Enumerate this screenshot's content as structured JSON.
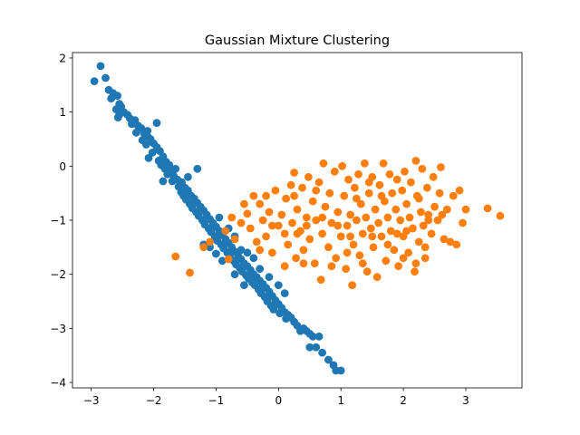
{
  "chart_data": {
    "type": "scatter",
    "title": "Gaussian Mixture Clustering",
    "xlabel": "",
    "ylabel": "",
    "xlim": [
      -3.3,
      3.9
    ],
    "ylim": [
      -4.1,
      2.1
    ],
    "xticks": [
      -3,
      -2,
      -1,
      0,
      1,
      2,
      3
    ],
    "yticks": [
      -4,
      -3,
      -2,
      -1,
      0,
      1,
      2
    ],
    "grid": false,
    "legend": "none",
    "series": [
      {
        "color": "#1f77b4",
        "points": [
          [
            -2.85,
            1.85
          ],
          [
            -2.95,
            1.57
          ],
          [
            -2.77,
            1.63
          ],
          [
            -2.72,
            1.41
          ],
          [
            -2.65,
            1.35
          ],
          [
            -2.68,
            1.25
          ],
          [
            -2.58,
            1.3
          ],
          [
            -2.55,
            1.15
          ],
          [
            -2.52,
            1.1
          ],
          [
            -2.6,
            1.05
          ],
          [
            -2.48,
            1.0
          ],
          [
            -2.55,
            0.95
          ],
          [
            -2.57,
            0.9
          ],
          [
            -2.42,
            0.95
          ],
          [
            -2.38,
            0.88
          ],
          [
            -2.3,
            0.85
          ],
          [
            -2.35,
            0.78
          ],
          [
            -2.25,
            0.75
          ],
          [
            -2.2,
            0.7
          ],
          [
            -2.28,
            0.62
          ],
          [
            -2.15,
            0.6
          ],
          [
            -2.1,
            0.55
          ],
          [
            -2.18,
            0.48
          ],
          [
            -2.05,
            0.5
          ],
          [
            -2.12,
            0.4
          ],
          [
            -2.0,
            0.42
          ],
          [
            -1.95,
            0.35
          ],
          [
            -2.02,
            0.25
          ],
          [
            -1.9,
            0.28
          ],
          [
            -2.08,
            0.15
          ],
          [
            -1.85,
            0.18
          ],
          [
            -1.92,
            0.1
          ],
          [
            -1.8,
            0.08
          ],
          [
            -1.88,
            0.02
          ],
          [
            -1.75,
            0.02
          ],
          [
            -1.82,
            -0.05
          ],
          [
            -1.72,
            -0.08
          ],
          [
            -1.65,
            -0.05
          ],
          [
            -1.78,
            -0.15
          ],
          [
            -1.68,
            -0.18
          ],
          [
            -1.62,
            -0.25
          ],
          [
            -1.7,
            -0.28
          ],
          [
            -1.55,
            -0.3
          ],
          [
            -1.85,
            -0.28
          ],
          [
            -1.6,
            -0.38
          ],
          [
            -1.5,
            -0.4
          ],
          [
            -1.56,
            -0.48
          ],
          [
            -1.45,
            -0.45
          ],
          [
            -1.52,
            -0.55
          ],
          [
            -1.4,
            -0.55
          ],
          [
            -1.48,
            -0.62
          ],
          [
            -1.35,
            -0.6
          ],
          [
            -1.42,
            -0.7
          ],
          [
            -1.3,
            -0.68
          ],
          [
            -1.38,
            -0.78
          ],
          [
            -1.25,
            -0.75
          ],
          [
            -1.32,
            -0.85
          ],
          [
            -1.2,
            -0.82
          ],
          [
            -1.28,
            -0.92
          ],
          [
            -1.15,
            -0.9
          ],
          [
            -1.22,
            -1.0
          ],
          [
            -1.1,
            -0.98
          ],
          [
            -1.18,
            -1.08
          ],
          [
            -1.05,
            -1.05
          ],
          [
            -1.12,
            -1.15
          ],
          [
            -1.0,
            -1.12
          ],
          [
            -1.08,
            -1.22
          ],
          [
            -0.95,
            -1.2
          ],
          [
            -1.02,
            -1.3
          ],
          [
            -0.9,
            -1.28
          ],
          [
            -0.98,
            -1.38
          ],
          [
            -0.85,
            -1.35
          ],
          [
            -0.92,
            -1.45
          ],
          [
            -0.8,
            -1.42
          ],
          [
            -0.88,
            -1.52
          ],
          [
            -0.75,
            -1.5
          ],
          [
            -0.82,
            -1.6
          ],
          [
            -0.7,
            -1.58
          ],
          [
            -0.78,
            -1.68
          ],
          [
            -0.65,
            -1.65
          ],
          [
            -0.72,
            -1.75
          ],
          [
            -0.6,
            -1.72
          ],
          [
            -0.68,
            -1.82
          ],
          [
            -0.55,
            -1.8
          ],
          [
            -0.62,
            -1.88
          ],
          [
            -0.5,
            -1.85
          ],
          [
            -0.58,
            -1.95
          ],
          [
            -0.45,
            -1.92
          ],
          [
            -0.52,
            -2.02
          ],
          [
            -0.4,
            -2.0
          ],
          [
            -0.48,
            -2.08
          ],
          [
            -0.35,
            -2.05
          ],
          [
            -0.42,
            -2.15
          ],
          [
            -0.3,
            -2.12
          ],
          [
            -0.38,
            -2.2
          ],
          [
            -0.25,
            -2.18
          ],
          [
            -0.32,
            -2.28
          ],
          [
            -0.2,
            -2.25
          ],
          [
            -0.28,
            -2.35
          ],
          [
            -0.15,
            -2.32
          ],
          [
            -0.22,
            -2.42
          ],
          [
            -0.1,
            -2.4
          ],
          [
            -0.18,
            -2.5
          ],
          [
            -0.05,
            -2.48
          ],
          [
            -0.12,
            -2.58
          ],
          [
            0.0,
            -2.55
          ],
          [
            -0.08,
            -2.65
          ],
          [
            0.05,
            -2.62
          ],
          [
            0.1,
            -2.7
          ],
          [
            0.02,
            -2.72
          ],
          [
            0.15,
            -2.75
          ],
          [
            0.2,
            -2.8
          ],
          [
            0.12,
            -2.82
          ],
          [
            0.25,
            -2.88
          ],
          [
            0.3,
            -2.95
          ],
          [
            0.4,
            -3.0
          ],
          [
            0.45,
            -3.05
          ],
          [
            0.35,
            -3.05
          ],
          [
            0.5,
            -3.1
          ],
          [
            0.55,
            -3.15
          ],
          [
            0.65,
            -3.15
          ],
          [
            0.5,
            -3.35
          ],
          [
            0.6,
            -3.35
          ],
          [
            0.7,
            -3.45
          ],
          [
            0.8,
            -3.58
          ],
          [
            0.88,
            -3.68
          ],
          [
            0.92,
            -3.78
          ],
          [
            1.0,
            -3.78
          ],
          [
            -1.45,
            -0.2
          ],
          [
            -1.3,
            -0.05
          ],
          [
            -2.1,
            0.65
          ],
          [
            -1.95,
            0.8
          ],
          [
            -1.2,
            -1.45
          ],
          [
            -1.1,
            -1.5
          ],
          [
            -0.9,
            -1.75
          ],
          [
            -1.0,
            -1.62
          ],
          [
            -0.95,
            -0.95
          ],
          [
            -0.8,
            -1.15
          ],
          [
            -0.7,
            -1.3
          ],
          [
            -0.6,
            -1.55
          ],
          [
            -0.4,
            -1.7
          ],
          [
            -0.3,
            -1.9
          ],
          [
            -0.15,
            -2.05
          ],
          [
            0.0,
            -2.2
          ],
          [
            0.1,
            -2.35
          ],
          [
            -0.5,
            -1.6
          ],
          [
            -0.7,
            -2.0
          ],
          [
            -0.55,
            -2.2
          ]
        ]
      },
      {
        "color": "#ff7f0e",
        "points": [
          [
            -1.65,
            -1.67
          ],
          [
            -1.42,
            -1.97
          ],
          [
            -1.2,
            -1.5
          ],
          [
            -1.1,
            -1.4
          ],
          [
            -0.8,
            -1.72
          ],
          [
            -0.75,
            -0.95
          ],
          [
            -0.85,
            -1.2
          ],
          [
            -0.6,
            -1.05
          ],
          [
            -0.5,
            -0.88
          ],
          [
            -0.45,
            -1.15
          ],
          [
            -0.4,
            -0.55
          ],
          [
            -0.3,
            -0.7
          ],
          [
            -0.35,
            -1.4
          ],
          [
            -0.25,
            -1.0
          ],
          [
            -0.2,
            -1.3
          ],
          [
            -0.15,
            -0.85
          ],
          [
            -0.1,
            -1.6
          ],
          [
            -0.05,
            -0.45
          ],
          [
            0.0,
            -1.1
          ],
          [
            0.05,
            -0.9
          ],
          [
            0.1,
            -1.25
          ],
          [
            0.12,
            -0.6
          ],
          [
            0.15,
            -1.45
          ],
          [
            0.2,
            -0.35
          ],
          [
            0.22,
            -1.05
          ],
          [
            0.25,
            -0.12
          ],
          [
            0.28,
            -1.7
          ],
          [
            0.3,
            -0.8
          ],
          [
            0.35,
            -1.2
          ],
          [
            0.38,
            -0.4
          ],
          [
            0.4,
            -1.55
          ],
          [
            0.45,
            -0.95
          ],
          [
            0.48,
            -0.2
          ],
          [
            0.5,
            -1.35
          ],
          [
            0.55,
            -0.65
          ],
          [
            0.58,
            -1.8
          ],
          [
            0.6,
            -1.0
          ],
          [
            0.65,
            -0.3
          ],
          [
            0.68,
            -2.1
          ],
          [
            0.7,
            -1.25
          ],
          [
            0.72,
            0.05
          ],
          [
            0.75,
            -0.75
          ],
          [
            0.8,
            -1.5
          ],
          [
            0.82,
            -0.5
          ],
          [
            0.85,
            -1.05
          ],
          [
            0.9,
            -0.1
          ],
          [
            0.92,
            -1.7
          ],
          [
            0.95,
            -0.85
          ],
          [
            1.0,
            -1.3
          ],
          [
            1.02,
            0.0
          ],
          [
            1.05,
            -0.55
          ],
          [
            1.08,
            -1.9
          ],
          [
            1.1,
            -1.1
          ],
          [
            1.12,
            -0.25
          ],
          [
            1.15,
            -0.9
          ],
          [
            1.18,
            -2.2
          ],
          [
            1.2,
            -1.45
          ],
          [
            1.22,
            -0.4
          ],
          [
            1.25,
            -1.0
          ],
          [
            1.28,
            -0.15
          ],
          [
            1.3,
            -1.65
          ],
          [
            1.32,
            -0.7
          ],
          [
            1.35,
            -1.25
          ],
          [
            1.38,
            0.05
          ],
          [
            1.4,
            -0.95
          ],
          [
            1.42,
            -1.95
          ],
          [
            1.45,
            -0.5
          ],
          [
            1.48,
            -1.15
          ],
          [
            1.5,
            -0.2
          ],
          [
            1.52,
            -1.5
          ],
          [
            1.55,
            -0.8
          ],
          [
            1.58,
            -2.05
          ],
          [
            1.6,
            -1.05
          ],
          [
            1.62,
            -0.35
          ],
          [
            1.65,
            -1.3
          ],
          [
            1.68,
            0.05
          ],
          [
            1.7,
            -0.65
          ],
          [
            1.72,
            -1.75
          ],
          [
            1.75,
            -0.95
          ],
          [
            1.78,
            -0.15
          ],
          [
            1.8,
            -1.2
          ],
          [
            1.82,
            -0.5
          ],
          [
            1.85,
            -1.55
          ],
          [
            1.88,
            -0.8
          ],
          [
            1.9,
            -0.25
          ],
          [
            1.92,
            -1.85
          ],
          [
            1.95,
            -1.0
          ],
          [
            1.98,
            -0.45
          ],
          [
            2.0,
            -1.3
          ],
          [
            2.02,
            -0.1
          ],
          [
            2.05,
            -0.7
          ],
          [
            2.08,
            -1.6
          ],
          [
            2.1,
            -0.95
          ],
          [
            2.12,
            -0.3
          ],
          [
            2.15,
            -1.15
          ],
          [
            2.18,
            -1.95
          ],
          [
            2.2,
            0.1
          ],
          [
            2.22,
            -0.55
          ],
          [
            2.25,
            -1.4
          ],
          [
            2.28,
            -0.85
          ],
          [
            2.3,
            -0.05
          ],
          [
            2.32,
            -1.1
          ],
          [
            2.35,
            -1.7
          ],
          [
            2.38,
            -0.4
          ],
          [
            2.4,
            -0.9
          ],
          [
            2.45,
            -1.25
          ],
          [
            2.48,
            -0.2
          ],
          [
            2.5,
            -0.75
          ],
          [
            2.55,
            -1.0
          ],
          [
            2.58,
            -0.5
          ],
          [
            2.6,
            -0.02
          ],
          [
            2.65,
            -1.35
          ],
          [
            2.7,
            -0.8
          ],
          [
            2.75,
            -1.4
          ],
          [
            2.8,
            -0.55
          ],
          [
            2.85,
            -1.45
          ],
          [
            2.9,
            -0.45
          ],
          [
            2.95,
            -1.05
          ],
          [
            3.0,
            -0.8
          ],
          [
            3.35,
            -0.78
          ],
          [
            3.55,
            -0.92
          ],
          [
            -0.55,
            -0.7
          ],
          [
            -0.2,
            -0.55
          ],
          [
            0.25,
            -0.55
          ],
          [
            0.6,
            -0.45
          ],
          [
            0.4,
            -1.8
          ],
          [
            0.85,
            -1.85
          ],
          [
            1.1,
            -1.6
          ],
          [
            1.35,
            -1.8
          ],
          [
            1.75,
            -1.45
          ],
          [
            2.0,
            -1.7
          ],
          [
            2.35,
            -1.5
          ],
          [
            2.2,
            -1.8
          ],
          [
            -0.7,
            -1.35
          ],
          [
            -0.3,
            -1.55
          ],
          [
            0.1,
            -1.85
          ],
          [
            0.45,
            -1.1
          ],
          [
            0.95,
            -1.1
          ],
          [
            1.25,
            -0.6
          ],
          [
            1.65,
            -0.55
          ],
          [
            2.05,
            -1.2
          ],
          [
            2.4,
            -1.0
          ],
          [
            2.62,
            -0.9
          ],
          [
            0.7,
            -0.95
          ],
          [
            1.5,
            -1.3
          ],
          [
            1.9,
            -1.25
          ],
          [
            0.3,
            -1.25
          ],
          [
            -0.1,
            -1.1
          ],
          [
            1.15,
            -1.3
          ],
          [
            1.45,
            -0.3
          ],
          [
            2.25,
            -0.6
          ]
        ]
      }
    ]
  }
}
